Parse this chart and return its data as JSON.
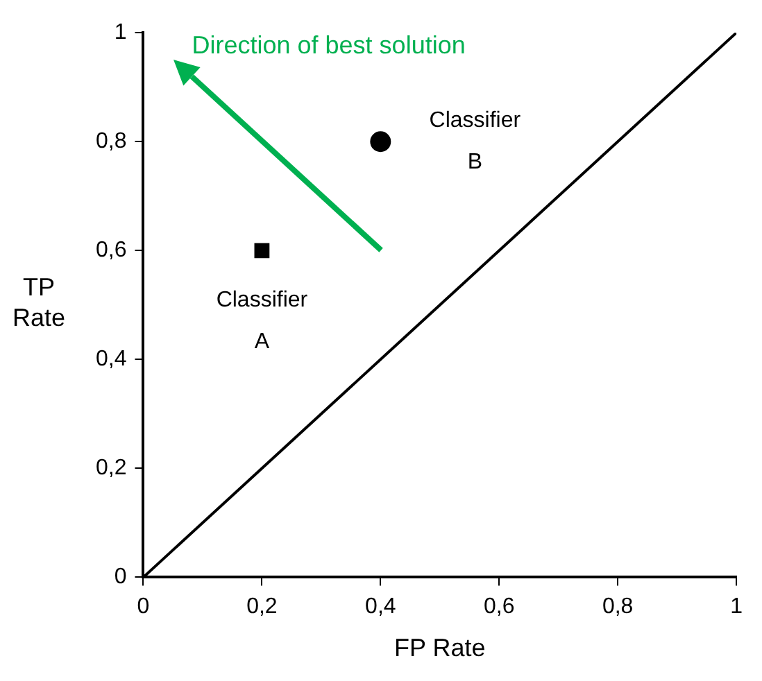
{
  "chart_data": {
    "type": "scatter",
    "xlabel": "FP Rate",
    "ylabel": "TP Rate",
    "annotations": [
      "Direction of best solution"
    ],
    "series": [
      {
        "type": "line",
        "x": [
          0,
          1
        ],
        "values": [
          0,
          1
        ],
        "color": "#000000",
        "marker": "none"
      },
      {
        "name": "Classifier A",
        "x": [
          0.2
        ],
        "values": [
          0.6
        ],
        "color": "#000000",
        "marker": "square"
      },
      {
        "name": "Classifier B",
        "x": [
          0.4
        ],
        "values": [
          0.8
        ],
        "color": "#000000",
        "marker": "circle"
      }
    ],
    "xlim": [
      0,
      1
    ],
    "ylim": [
      0,
      1
    ],
    "xticks": [
      0,
      {
        "value": 0.2,
        "label": "0,2"
      },
      {
        "value": 0.4,
        "label": "0,4"
      },
      {
        "value": 0.6,
        "label": "0,6"
      },
      {
        "value": 0.8,
        "label": "0,8"
      },
      1
    ],
    "yticks": [
      0,
      {
        "value": 0.2,
        "label": "0,2"
      },
      {
        "value": 0.4,
        "label": "0,4"
      },
      {
        "value": 0.6,
        "label": "0,6"
      },
      {
        "value": 0.8,
        "label": "0,8"
      },
      1
    ],
    "grid": false,
    "legend": false
  }
}
